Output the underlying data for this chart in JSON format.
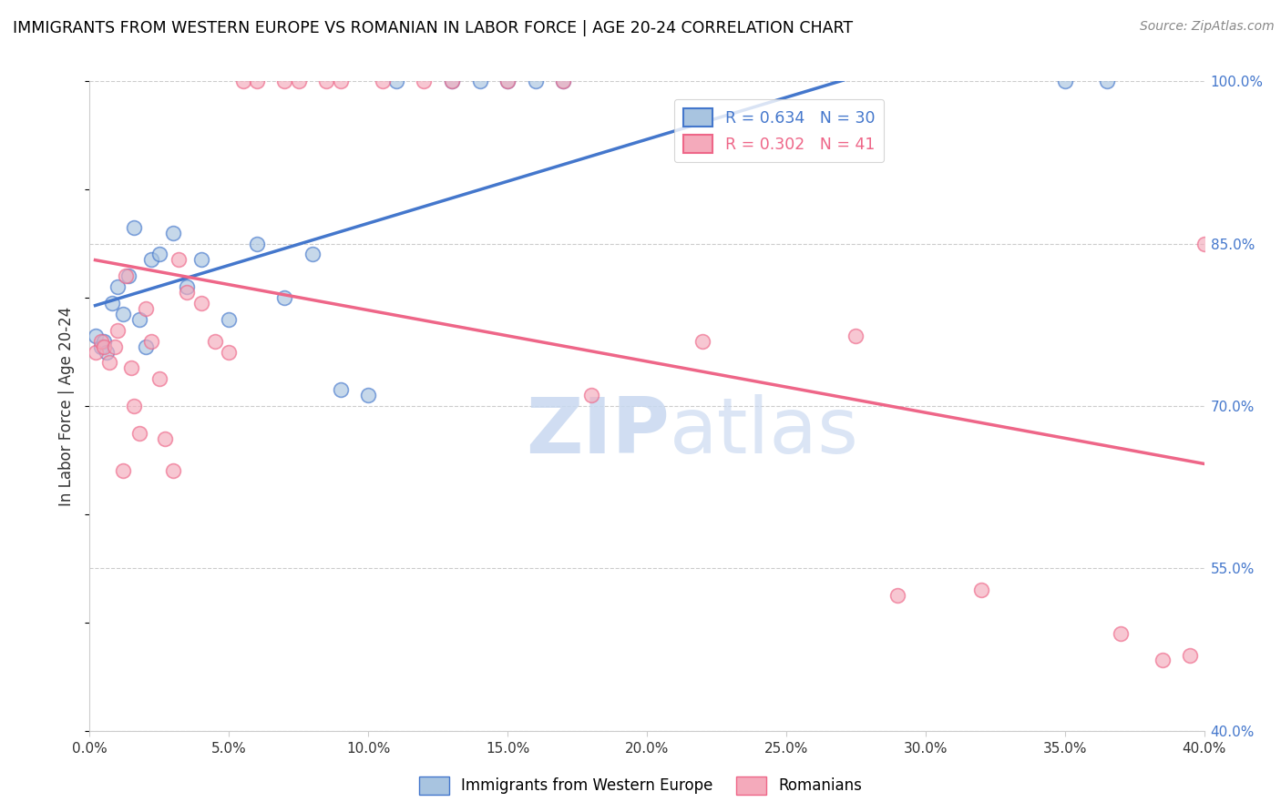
{
  "title": "IMMIGRANTS FROM WESTERN EUROPE VS ROMANIAN IN LABOR FORCE | AGE 20-24 CORRELATION CHART",
  "source": "Source: ZipAtlas.com",
  "ylabel": "In Labor Force | Age 20-24",
  "yaxis_ticks": [
    100.0,
    85.0,
    70.0,
    55.0,
    40.0
  ],
  "xaxis_ticks": [
    0.0,
    5.0,
    10.0,
    15.0,
    20.0,
    25.0,
    30.0,
    35.0,
    40.0
  ],
  "blue_R": 0.634,
  "blue_N": 30,
  "pink_R": 0.302,
  "pink_N": 41,
  "blue_color": "#A8C4E0",
  "pink_color": "#F4AABB",
  "blue_line_color": "#4477CC",
  "pink_line_color": "#EE6688",
  "legend_label_blue": "Immigrants from Western Europe",
  "legend_label_pink": "Romanians",
  "watermark_zip": "ZIP",
  "watermark_atlas": "atlas",
  "blue_scatter_x": [
    0.2,
    0.4,
    0.5,
    0.6,
    0.8,
    1.0,
    1.2,
    1.4,
    1.6,
    1.8,
    2.0,
    2.2,
    2.5,
    3.0,
    3.5,
    4.0,
    5.0,
    6.0,
    7.0,
    8.0,
    9.0,
    10.0,
    11.0,
    13.0,
    14.0,
    15.0,
    16.0,
    17.0,
    35.0,
    36.5
  ],
  "blue_scatter_y": [
    76.5,
    75.5,
    76.0,
    75.0,
    79.5,
    81.0,
    78.5,
    82.0,
    86.5,
    78.0,
    75.5,
    83.5,
    84.0,
    86.0,
    81.0,
    83.5,
    78.0,
    85.0,
    80.0,
    84.0,
    71.5,
    71.0,
    100.0,
    100.0,
    100.0,
    100.0,
    100.0,
    100.0,
    100.0,
    100.0
  ],
  "pink_scatter_x": [
    0.2,
    0.4,
    0.5,
    0.7,
    0.9,
    1.0,
    1.2,
    1.3,
    1.5,
    1.6,
    1.8,
    2.0,
    2.2,
    2.5,
    2.7,
    3.0,
    3.2,
    3.5,
    4.0,
    4.5,
    5.0,
    5.5,
    6.0,
    7.0,
    7.5,
    8.5,
    9.0,
    10.5,
    12.0,
    13.0,
    15.0,
    17.0,
    22.0,
    27.5,
    29.0,
    32.0,
    37.0,
    38.5,
    39.5,
    40.0,
    18.0
  ],
  "pink_scatter_y": [
    75.0,
    76.0,
    75.5,
    74.0,
    75.5,
    77.0,
    64.0,
    82.0,
    73.5,
    70.0,
    67.5,
    79.0,
    76.0,
    72.5,
    67.0,
    64.0,
    83.5,
    80.5,
    79.5,
    76.0,
    75.0,
    100.0,
    100.0,
    100.0,
    100.0,
    100.0,
    100.0,
    100.0,
    100.0,
    100.0,
    100.0,
    100.0,
    76.0,
    76.5,
    52.5,
    53.0,
    49.0,
    46.5,
    47.0,
    85.0,
    71.0
  ]
}
